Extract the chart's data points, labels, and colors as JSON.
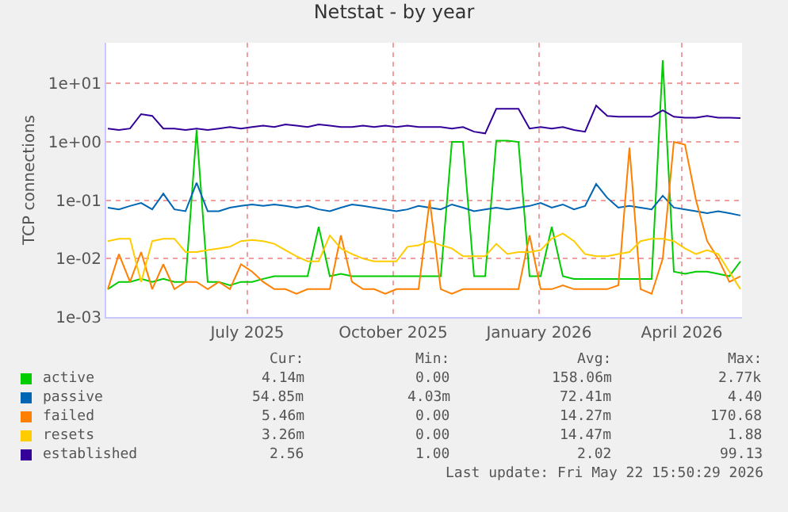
{
  "chart_data": {
    "type": "line",
    "title": "Netstat - by year",
    "ylabel": "TCP connections",
    "x": [
      "2025-04-04",
      "2025-04-11",
      "2025-04-18",
      "2025-04-25",
      "2025-05-02",
      "2025-05-09",
      "2025-05-16",
      "2025-05-23",
      "2025-05-30",
      "2025-06-06",
      "2025-06-13",
      "2025-06-20",
      "2025-06-27",
      "2025-07-04",
      "2025-07-11",
      "2025-07-18",
      "2025-07-25",
      "2025-08-01",
      "2025-08-08",
      "2025-08-15",
      "2025-08-22",
      "2025-08-29",
      "2025-09-05",
      "2025-09-12",
      "2025-09-19",
      "2025-09-26",
      "2025-10-03",
      "2025-10-10",
      "2025-10-17",
      "2025-10-24",
      "2025-10-31",
      "2025-11-07",
      "2025-11-14",
      "2025-11-21",
      "2025-11-28",
      "2025-12-05",
      "2025-12-12",
      "2025-12-19",
      "2025-12-26",
      "2026-01-02",
      "2026-01-09",
      "2026-01-16",
      "2026-01-23",
      "2026-01-30",
      "2026-02-06",
      "2026-02-13",
      "2026-02-20",
      "2026-02-27",
      "2026-03-06",
      "2026-03-13",
      "2026-03-20",
      "2026-03-27",
      "2026-04-03",
      "2026-04-10",
      "2026-04-17",
      "2026-04-24",
      "2026-05-01",
      "2026-05-08"
    ],
    "series": [
      {
        "name": "active",
        "color": "#00cc00",
        "values": [
          0.003,
          0.004,
          0.004,
          0.0045,
          0.004,
          0.0045,
          0.004,
          0.004,
          1.6,
          0.004,
          0.004,
          0.0035,
          0.004,
          0.004,
          0.0045,
          0.005,
          0.005,
          0.005,
          0.005,
          0.035,
          0.005,
          0.0055,
          0.005,
          0.005,
          0.005,
          0.005,
          0.005,
          0.005,
          0.005,
          0.005,
          0.005,
          1.0,
          1.0,
          0.005,
          0.005,
          1.05,
          1.05,
          1.0,
          0.005,
          0.005,
          0.035,
          0.005,
          0.0045,
          0.0045,
          0.0045,
          0.0045,
          0.0045,
          0.0045,
          0.0045,
          0.0045,
          25,
          0.006,
          0.0055,
          0.006,
          0.006,
          0.0055,
          0.005,
          0.009
        ]
      },
      {
        "name": "passive",
        "color": "#0066b3",
        "values": [
          0.075,
          0.07,
          0.08,
          0.09,
          0.07,
          0.13,
          0.07,
          0.065,
          0.2,
          0.065,
          0.065,
          0.075,
          0.08,
          0.085,
          0.08,
          0.085,
          0.08,
          0.075,
          0.08,
          0.07,
          0.065,
          0.075,
          0.085,
          0.08,
          0.075,
          0.07,
          0.065,
          0.07,
          0.08,
          0.075,
          0.07,
          0.085,
          0.075,
          0.065,
          0.07,
          0.075,
          0.07,
          0.075,
          0.08,
          0.09,
          0.075,
          0.085,
          0.07,
          0.08,
          0.19,
          0.11,
          0.075,
          0.08,
          0.075,
          0.07,
          0.12,
          0.075,
          0.07,
          0.065,
          0.06,
          0.065,
          0.06,
          0.055
        ]
      },
      {
        "name": "failed",
        "color": "#ff8000",
        "values": [
          0.003,
          0.012,
          0.004,
          0.013,
          0.003,
          0.008,
          0.003,
          0.004,
          0.004,
          0.003,
          0.004,
          0.003,
          0.008,
          0.006,
          0.004,
          0.003,
          0.003,
          0.0025,
          0.003,
          0.003,
          0.003,
          0.025,
          0.004,
          0.003,
          0.003,
          0.0025,
          0.003,
          0.003,
          0.003,
          0.1,
          0.003,
          0.0025,
          0.003,
          0.003,
          0.003,
          0.003,
          0.003,
          0.003,
          0.025,
          0.003,
          0.003,
          0.0035,
          0.003,
          0.003,
          0.003,
          0.003,
          0.0035,
          0.8,
          0.003,
          0.0025,
          0.01,
          1.0,
          0.9,
          0.1,
          0.02,
          0.01,
          0.004,
          0.005
        ]
      },
      {
        "name": "resets",
        "color": "#ffcc00",
        "values": [
          0.02,
          0.022,
          0.022,
          0.004,
          0.02,
          0.022,
          0.022,
          0.013,
          0.013,
          0.014,
          0.015,
          0.016,
          0.02,
          0.021,
          0.02,
          0.018,
          0.014,
          0.011,
          0.009,
          0.009,
          0.025,
          0.015,
          0.012,
          0.01,
          0.009,
          0.009,
          0.009,
          0.016,
          0.017,
          0.02,
          0.017,
          0.015,
          0.011,
          0.011,
          0.011,
          0.018,
          0.012,
          0.013,
          0.013,
          0.014,
          0.022,
          0.027,
          0.02,
          0.012,
          0.011,
          0.011,
          0.012,
          0.013,
          0.02,
          0.022,
          0.022,
          0.02,
          0.015,
          0.012,
          0.014,
          0.012,
          0.006,
          0.003
        ]
      },
      {
        "name": "established",
        "color": "#330099",
        "values": [
          1.7,
          1.6,
          1.7,
          3.0,
          2.8,
          1.7,
          1.7,
          1.6,
          1.7,
          1.6,
          1.7,
          1.8,
          1.7,
          1.8,
          1.9,
          1.8,
          2.0,
          1.9,
          1.8,
          2.0,
          1.9,
          1.8,
          1.8,
          1.9,
          1.8,
          1.9,
          1.8,
          1.9,
          1.8,
          1.8,
          1.8,
          1.7,
          1.8,
          1.5,
          1.4,
          3.7,
          3.7,
          3.7,
          1.7,
          1.8,
          1.7,
          1.8,
          1.6,
          1.5,
          4.2,
          2.8,
          2.7,
          2.7,
          2.7,
          2.7,
          3.5,
          2.7,
          2.6,
          2.6,
          2.8,
          2.6,
          2.6,
          2.56
        ]
      }
    ],
    "log": "y",
    "ylim": [
      0.001,
      50
    ],
    "yticks": [
      {
        "value": 0.001,
        "label": "1e-03"
      },
      {
        "value": 0.01,
        "label": "1e-02"
      },
      {
        "value": 0.1,
        "label": "1e-01"
      },
      {
        "value": 1,
        "label": "1e+00"
      },
      {
        "value": 10,
        "label": "1e+01"
      }
    ],
    "xlim": [
      "2025-04-03",
      "2026-05-09"
    ],
    "xticks": [
      {
        "value": "2025-07-01",
        "label": "July 2025"
      },
      {
        "value": "2025-10-01",
        "label": "October 2025"
      },
      {
        "value": "2026-01-01",
        "label": "January 2026"
      },
      {
        "value": "2026-04-01",
        "label": "April 2026"
      }
    ],
    "grid": true,
    "legend": "bottom",
    "annotations": [
      "Cur:",
      "Min:",
      "Avg:",
      "Max:",
      "4.14m",
      "0.00",
      "158.06m",
      "2.77k",
      "54.85m",
      "4.03m",
      "72.41m",
      "4.40",
      "5.46m",
      "0.00",
      "14.27m",
      "170.68",
      "3.26m",
      "0.00",
      "14.47m",
      "1.88",
      "2.56",
      "1.00",
      "2.02",
      "99.13",
      "Last update: Fri May 22 15:50:29 2026"
    ]
  }
}
